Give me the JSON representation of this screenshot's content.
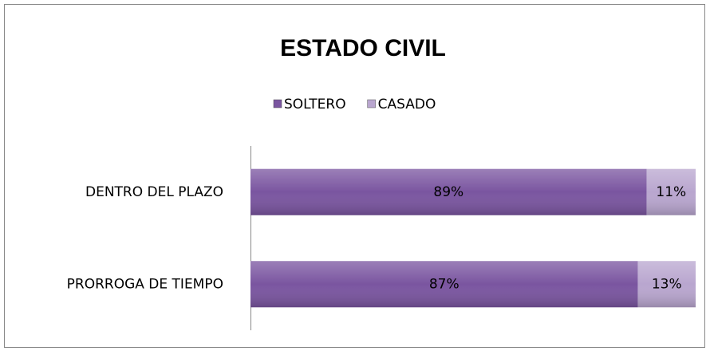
{
  "chart_data": {
    "type": "bar",
    "orientation": "horizontal",
    "stacked": true,
    "title": "ESTADO CIVIL",
    "categories": [
      "DENTRO DEL PLAZO",
      "PRORROGA DE TIEMPO"
    ],
    "series": [
      {
        "name": "SOLTERO",
        "color": "#7a55a0",
        "values": [
          89,
          87
        ],
        "value_labels": [
          "89%",
          "87%"
        ]
      },
      {
        "name": "CASADO",
        "color": "#b9a6cf",
        "values": [
          11,
          13
        ],
        "value_labels": [
          "11%",
          "13%"
        ]
      }
    ],
    "xlim": [
      0,
      100
    ],
    "legend": "top"
  }
}
